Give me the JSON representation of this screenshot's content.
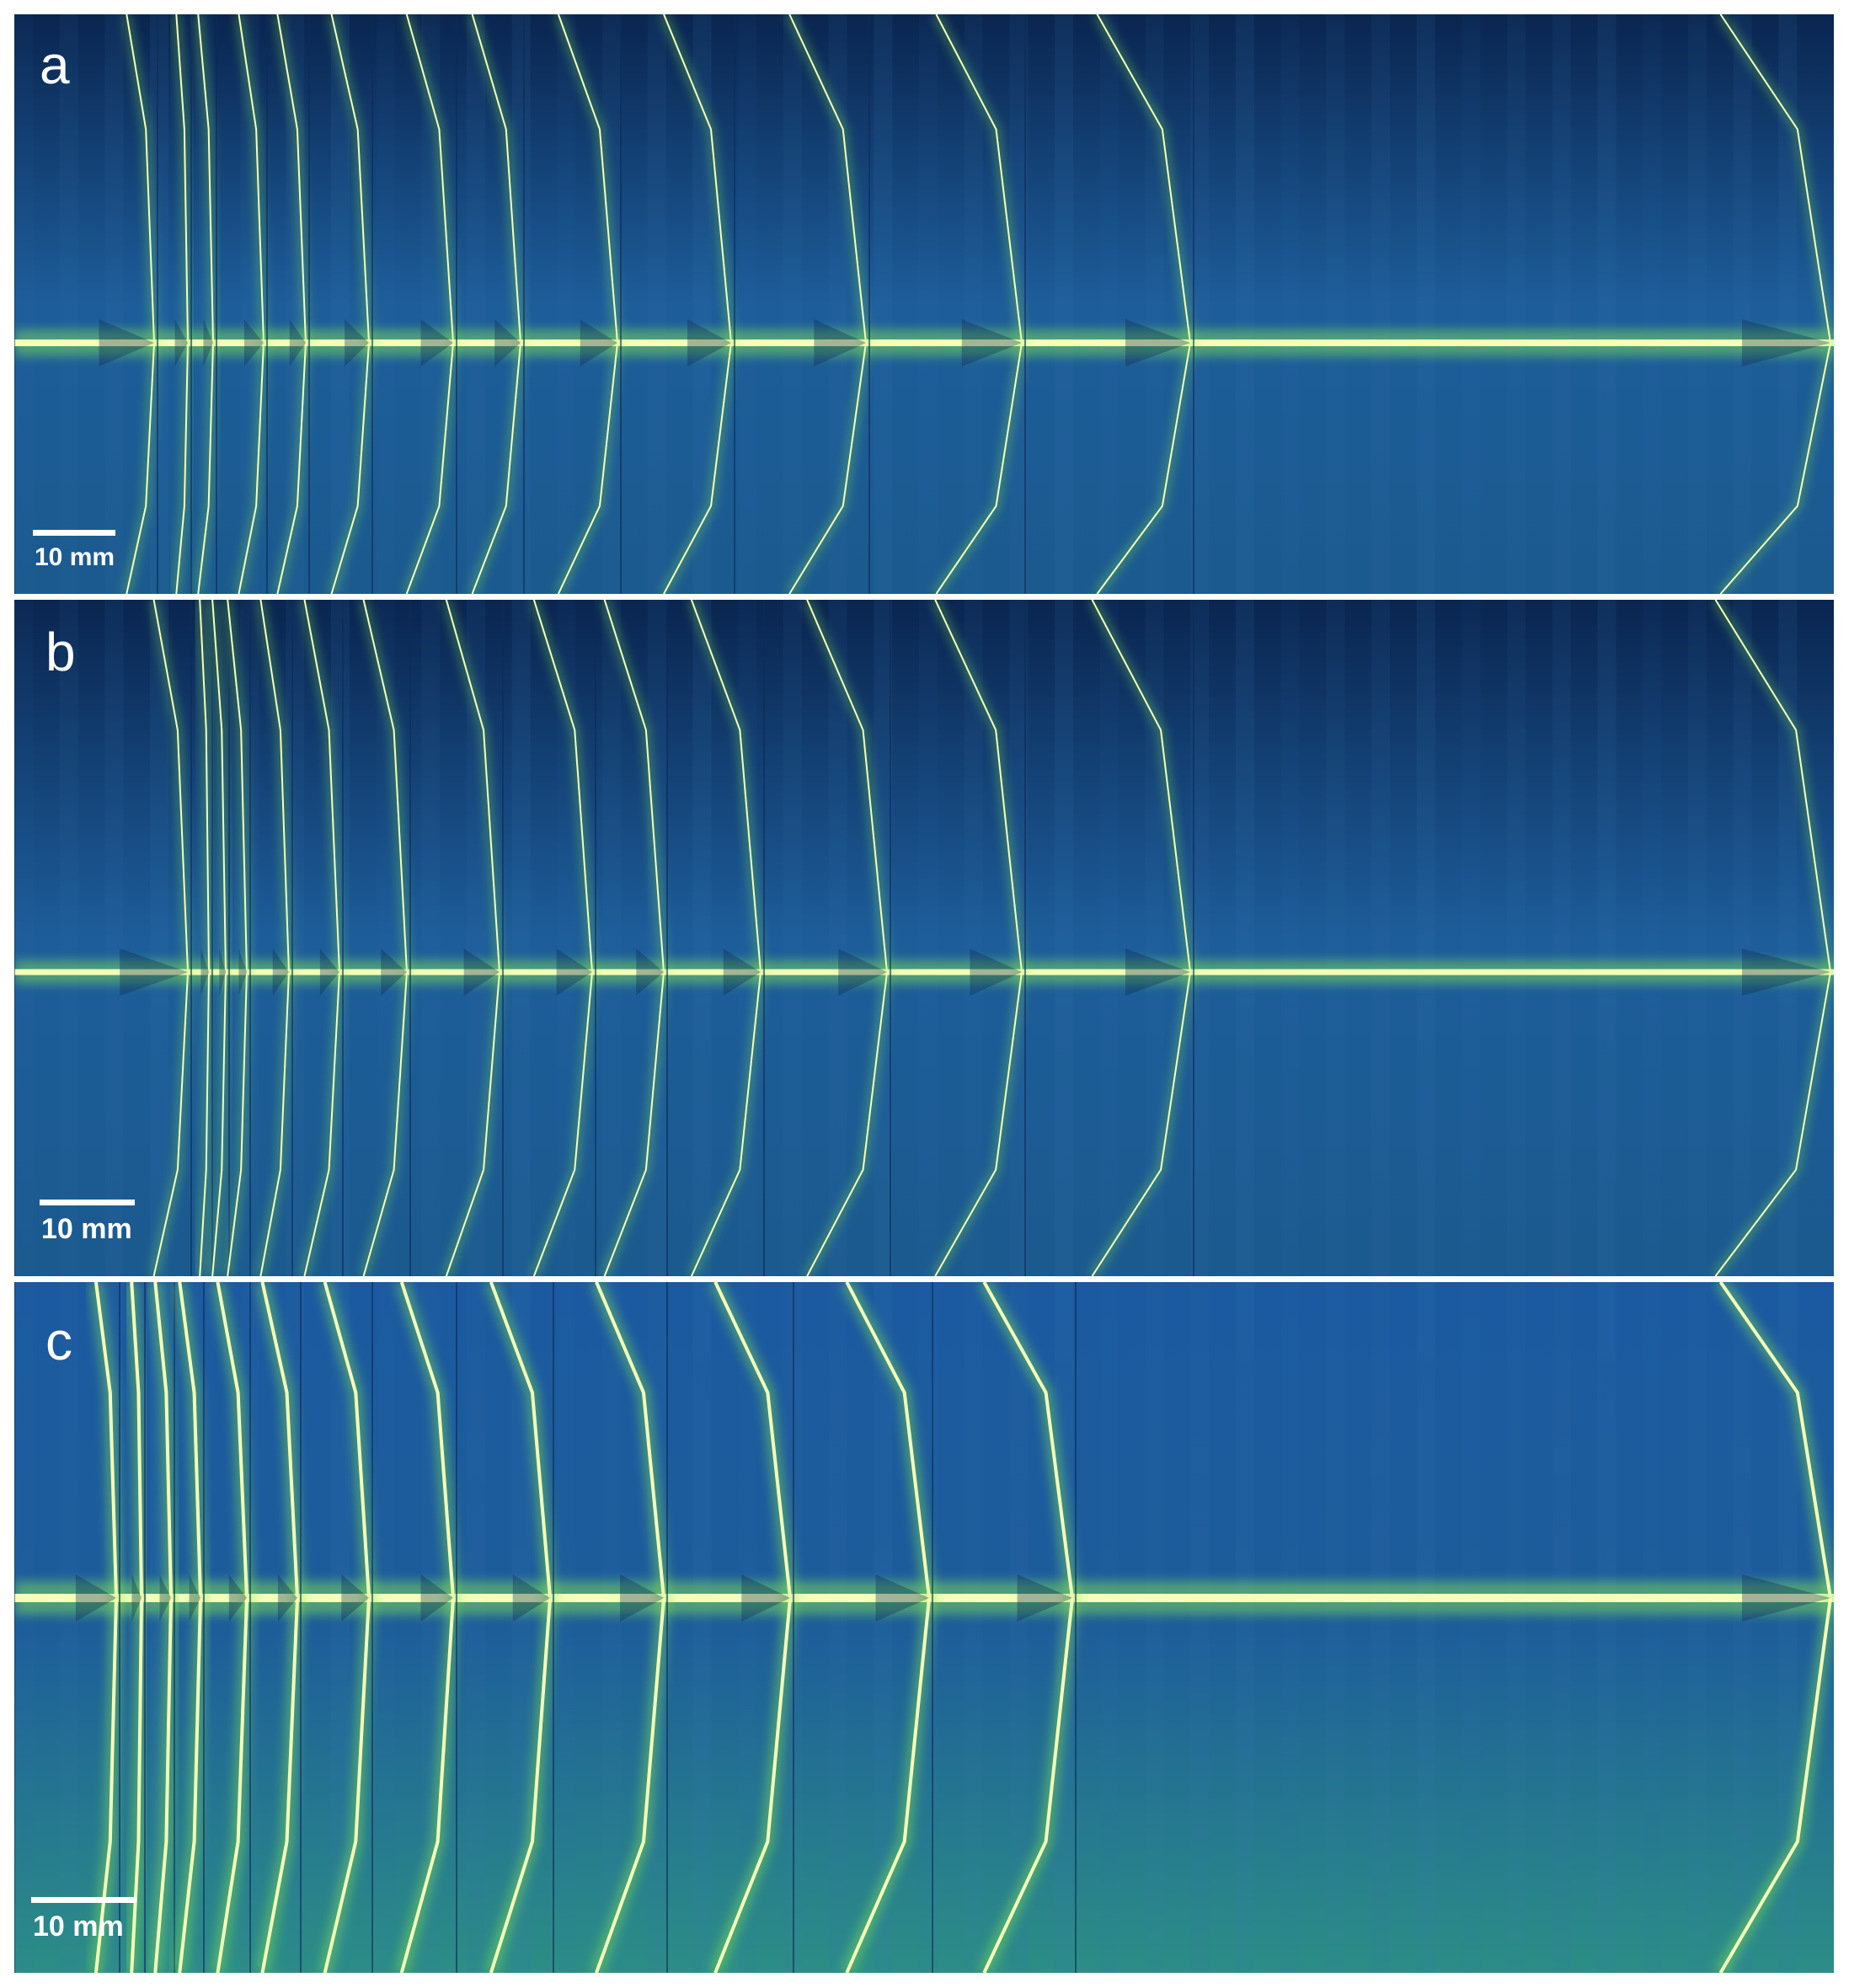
{
  "figure": {
    "panels": [
      {
        "label": "a",
        "scalebar": "10 mm",
        "frames": 13
      },
      {
        "label": "b",
        "scalebar": "10 mm",
        "frames": 15
      },
      {
        "label": "c",
        "scalebar": "10 mm",
        "frames": 13
      }
    ],
    "colors": {
      "background": "#0a2550",
      "mid": "#1d5d9a",
      "glow": "#7fe05a",
      "bright": "#f4ffb8",
      "frame_border": "#ffffff"
    }
  }
}
